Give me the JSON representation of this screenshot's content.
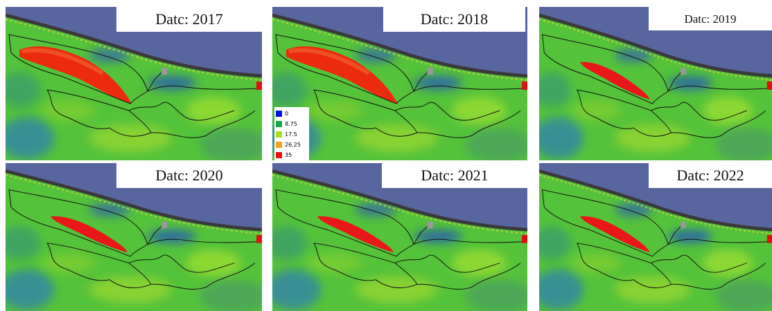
{
  "panels": [
    {
      "title": "Datc: 2017"
    },
    {
      "title": "Datc: 2018"
    },
    {
      "title": "Datc: 2019"
    },
    {
      "title": "Datc: 2020"
    },
    {
      "title": "Datc: 2021"
    },
    {
      "title": "Datc: 2022"
    }
  ],
  "legend": [
    {
      "label": "0",
      "color": "#0010e0"
    },
    {
      "label": "8.75",
      "color": "#18a84a"
    },
    {
      "label": "17.5",
      "color": "#a8e020"
    },
    {
      "label": "26.25",
      "color": "#f5a020"
    },
    {
      "label": "35",
      "color": "#e81010"
    }
  ]
}
